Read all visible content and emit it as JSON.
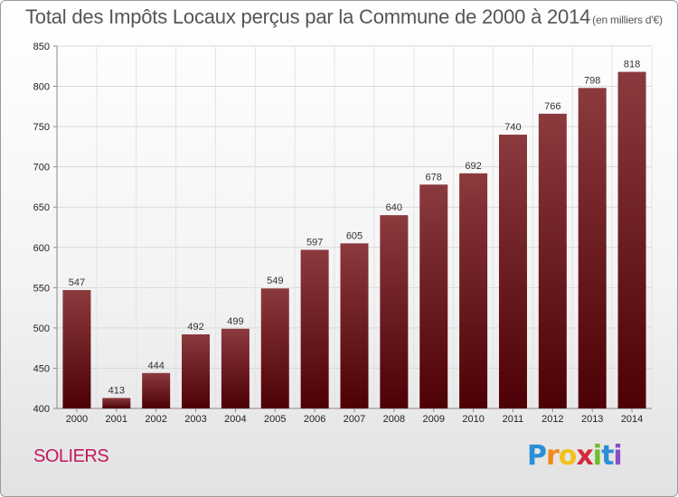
{
  "title": "Total des Impôts Locaux perçus par la Commune de 2000 à 2014",
  "unit": "(en milliers d'€)",
  "commune": "SOLIERS",
  "logo": {
    "letters": [
      "P",
      "r",
      "o",
      "x",
      "i",
      "t",
      "i"
    ]
  },
  "colors": {
    "bar_top": "#8b3a3e",
    "bar_bottom": "#4d0005",
    "commune": "#c2185b"
  },
  "chart_data": {
    "type": "bar",
    "title": "Total des Impôts Locaux perçus par la Commune de 2000 à 2014",
    "xlabel": "",
    "ylabel": "",
    "categories": [
      "2000",
      "2001",
      "2002",
      "2003",
      "2004",
      "2005",
      "2006",
      "2007",
      "2008",
      "2009",
      "2010",
      "2011",
      "2012",
      "2013",
      "2014"
    ],
    "values": [
      547,
      413,
      444,
      492,
      499,
      549,
      597,
      605,
      640,
      678,
      692,
      740,
      766,
      798,
      818
    ],
    "ylim": [
      400,
      850
    ],
    "yticks": [
      400,
      450,
      500,
      550,
      600,
      650,
      700,
      750,
      800,
      850
    ],
    "grid": true
  }
}
